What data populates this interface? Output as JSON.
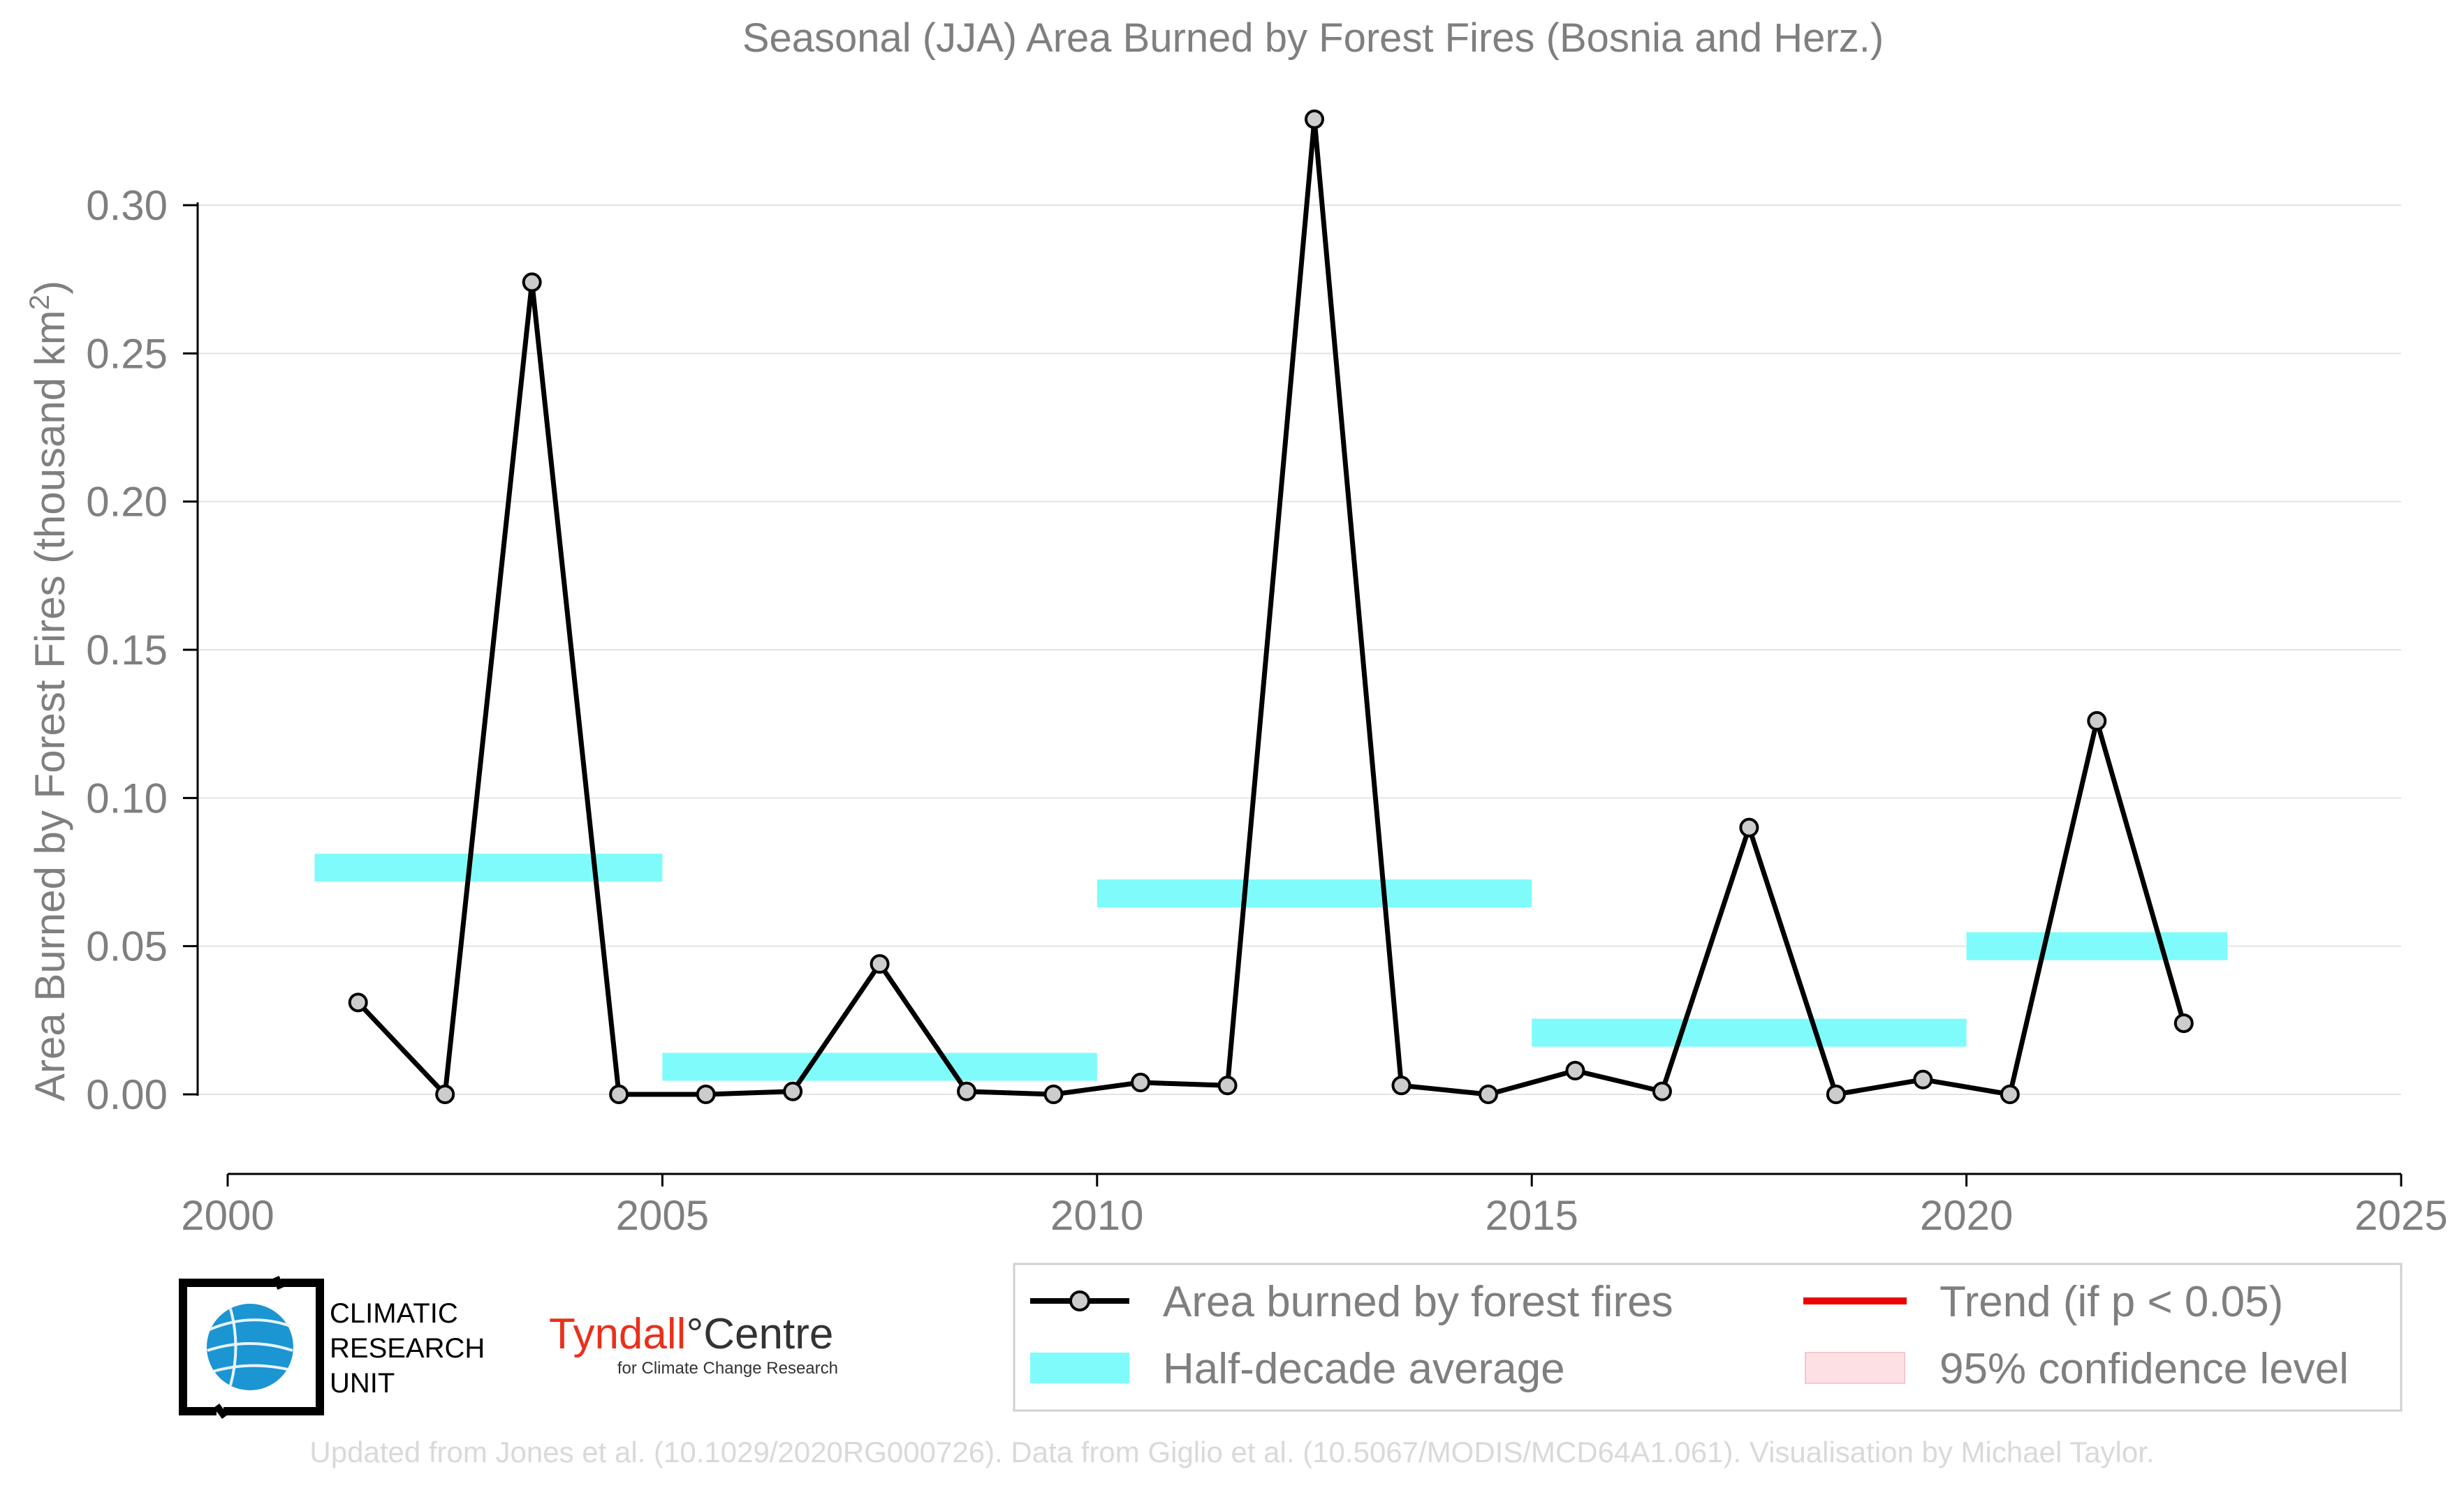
{
  "chart_data": {
    "type": "line",
    "title": "Seasonal (JJA) Area Burned by Forest Fires (Bosnia and Herz.)",
    "ylabel": "Area Burned by Forest Fires (thousand km",
    "ylabel_sup": "2",
    "ylabel_end": ")",
    "xlabel": "",
    "xlim": [
      2000,
      2025
    ],
    "ylim": [
      -0.027,
      0.33
    ],
    "xticks": [
      2000,
      2005,
      2010,
      2015,
      2020,
      2025
    ],
    "yticks": [
      0.0,
      0.05,
      0.1,
      0.15,
      0.2,
      0.25,
      0.3
    ],
    "ytick_labels": [
      "0.00",
      "0.05",
      "0.10",
      "0.15",
      "0.20",
      "0.25",
      "0.30"
    ],
    "grid": true,
    "series": [
      {
        "name": "Area burned by forest fires",
        "color": "#000000",
        "marker_fill": "#cccccc",
        "x": [
          2001.5,
          2002.5,
          2003.5,
          2004.5,
          2005.5,
          2006.5,
          2007.5,
          2008.5,
          2009.5,
          2010.5,
          2011.5,
          2012.5,
          2013.5,
          2014.5,
          2015.5,
          2016.5,
          2017.5,
          2018.5,
          2019.5,
          2020.5,
          2021.5,
          2022.5
        ],
        "y": [
          0.031,
          0.0,
          0.274,
          0.0,
          0.0,
          0.001,
          0.044,
          0.001,
          0.0,
          0.004,
          0.003,
          0.329,
          0.003,
          0.0,
          0.008,
          0.001,
          0.09,
          0.0,
          0.005,
          0.0,
          0.126,
          0.024
        ]
      }
    ],
    "half_decade_average": {
      "name": "Half-decade average",
      "color": "#7ffbfb",
      "segments": [
        {
          "x0": 2001,
          "x1": 2005,
          "y": 0.0765
        },
        {
          "x0": 2005,
          "x1": 2010,
          "y": 0.0093
        },
        {
          "x0": 2010,
          "x1": 2015,
          "y": 0.0678
        },
        {
          "x0": 2015,
          "x1": 2020,
          "y": 0.0208
        },
        {
          "x0": 2020,
          "x1": 2023,
          "y": 0.05
        }
      ]
    },
    "legend": {
      "placement": "bottom-right",
      "entries": [
        {
          "label": "Area burned by forest fires",
          "kind": "line-marker",
          "color": "#000000"
        },
        {
          "label": "Trend (if p < 0.05)",
          "kind": "line",
          "color": "#ee0000"
        },
        {
          "label": "Half-decade average",
          "kind": "band",
          "color": "#7ffbfb"
        },
        {
          "label": "95% confidence level",
          "kind": "band",
          "color": "#fde0e3"
        }
      ]
    }
  },
  "logos": {
    "cru": [
      "CLIMATIC",
      "RESEARCH",
      "UNIT"
    ],
    "tyndall_main": "Tyndall",
    "tyndall_degree": "°",
    "tyndall_centre": "Centre",
    "tyndall_sub": "for Climate Change Research"
  },
  "credit": "Updated from Jones et al. (10.1029/2020RG000726). Data from Giglio et al. (10.5067/MODIS/MCD64A1.061). Visualisation by Michael Taylor."
}
